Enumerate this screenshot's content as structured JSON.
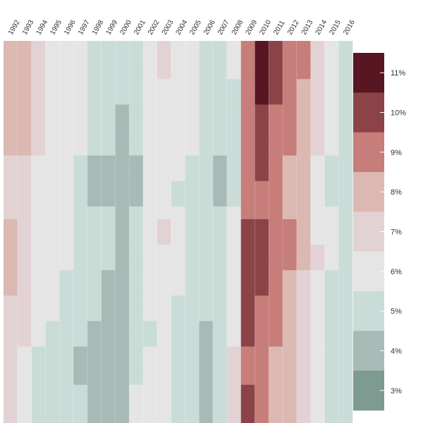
{
  "chart_data": {
    "type": "heatmap",
    "title": "",
    "xlabel": "",
    "ylabel": "",
    "x": [
      "1992",
      "1993",
      "1994",
      "1995",
      "1996",
      "1997",
      "1998",
      "1999",
      "2000",
      "2001",
      "2002",
      "2003",
      "2004",
      "2005",
      "2006",
      "2007",
      "2008",
      "2009",
      "2010",
      "2011",
      "2012",
      "2013",
      "2014",
      "2015",
      "2016"
    ],
    "row_count": 30,
    "values": [
      [
        8,
        8,
        7,
        6,
        6,
        6,
        5,
        5,
        5,
        5,
        6,
        7,
        6,
        6,
        5,
        5,
        6,
        9,
        11,
        10,
        9,
        9,
        7,
        6,
        5
      ],
      [
        8,
        8,
        7,
        6,
        6,
        6,
        5,
        5,
        5,
        5,
        6,
        7,
        6,
        6,
        5,
        5,
        6,
        9,
        11,
        10,
        9,
        9,
        7,
        6,
        5
      ],
      [
        8,
        8,
        7,
        6,
        6,
        6,
        5,
        5,
        5,
        5,
        6,
        7,
        6,
        6,
        5,
        5,
        6,
        9,
        11,
        10,
        9,
        9,
        7,
        6,
        5
      ],
      [
        8,
        8,
        7,
        6,
        6,
        6,
        5,
        5,
        5,
        5,
        6,
        6,
        6,
        6,
        5,
        5,
        5,
        9,
        11,
        10,
        9,
        8,
        7,
        6,
        5
      ],
      [
        8,
        8,
        7,
        6,
        6,
        6,
        5,
        5,
        5,
        5,
        6,
        6,
        6,
        6,
        5,
        5,
        5,
        9,
        11,
        10,
        9,
        8,
        7,
        6,
        5
      ],
      [
        8,
        8,
        7,
        6,
        6,
        6,
        5,
        5,
        4,
        5,
        6,
        6,
        6,
        6,
        5,
        5,
        5,
        9,
        10,
        9,
        9,
        8,
        7,
        6,
        5
      ],
      [
        8,
        8,
        7,
        6,
        6,
        6,
        5,
        5,
        4,
        5,
        6,
        6,
        6,
        6,
        5,
        5,
        5,
        9,
        10,
        9,
        9,
        8,
        7,
        6,
        5
      ],
      [
        8,
        8,
        7,
        6,
        6,
        6,
        5,
        5,
        4,
        5,
        6,
        6,
        6,
        6,
        5,
        5,
        5,
        9,
        10,
        9,
        9,
        8,
        7,
        6,
        5
      ],
      [
        8,
        8,
        7,
        6,
        6,
        6,
        5,
        5,
        4,
        5,
        6,
        6,
        6,
        6,
        5,
        5,
        5,
        9,
        10,
        9,
        9,
        8,
        7,
        6,
        5
      ],
      [
        7,
        7,
        6,
        6,
        6,
        5,
        4,
        4,
        4,
        4,
        6,
        6,
        6,
        5,
        5,
        4,
        5,
        9,
        10,
        9,
        8,
        8,
        6,
        5,
        5
      ],
      [
        7,
        7,
        6,
        6,
        6,
        5,
        4,
        4,
        4,
        4,
        6,
        6,
        6,
        5,
        5,
        4,
        5,
        9,
        10,
        9,
        8,
        8,
        6,
        5,
        5
      ],
      [
        7,
        7,
        6,
        6,
        6,
        5,
        4,
        4,
        4,
        4,
        6,
        6,
        5,
        5,
        5,
        4,
        5,
        9,
        9,
        9,
        8,
        8,
        6,
        5,
        5
      ],
      [
        7,
        7,
        6,
        6,
        6,
        5,
        4,
        4,
        4,
        4,
        6,
        6,
        5,
        5,
        5,
        4,
        5,
        9,
        9,
        9,
        8,
        8,
        6,
        5,
        5
      ],
      [
        7,
        7,
        6,
        6,
        6,
        5,
        5,
        5,
        4,
        5,
        6,
        6,
        6,
        5,
        5,
        5,
        6,
        9,
        9,
        9,
        8,
        8,
        6,
        6,
        5
      ],
      [
        8,
        7,
        6,
        6,
        6,
        5,
        5,
        5,
        4,
        5,
        6,
        7,
        6,
        5,
        5,
        5,
        6,
        10,
        10,
        9,
        9,
        8,
        6,
        6,
        5
      ],
      [
        8,
        7,
        6,
        6,
        6,
        5,
        5,
        5,
        4,
        5,
        6,
        7,
        6,
        5,
        5,
        5,
        6,
        10,
        10,
        9,
        9,
        8,
        6,
        6,
        5
      ],
      [
        8,
        7,
        6,
        6,
        6,
        5,
        5,
        5,
        4,
        5,
        6,
        6,
        6,
        5,
        5,
        5,
        6,
        10,
        10,
        9,
        9,
        8,
        7,
        6,
        5
      ],
      [
        8,
        7,
        6,
        6,
        6,
        5,
        5,
        5,
        4,
        5,
        6,
        6,
        6,
        5,
        5,
        5,
        6,
        10,
        10,
        9,
        9,
        8,
        7,
        6,
        5
      ],
      [
        8,
        7,
        6,
        6,
        5,
        5,
        5,
        4,
        4,
        5,
        6,
        6,
        6,
        5,
        5,
        5,
        6,
        10,
        10,
        9,
        8,
        7,
        6,
        5,
        5
      ],
      [
        8,
        7,
        6,
        6,
        5,
        5,
        5,
        4,
        4,
        5,
        6,
        6,
        6,
        5,
        5,
        5,
        6,
        10,
        10,
        9,
        8,
        7,
        6,
        5,
        5
      ],
      [
        7,
        7,
        6,
        6,
        5,
        5,
        5,
        4,
        4,
        5,
        6,
        6,
        5,
        5,
        5,
        5,
        6,
        10,
        9,
        9,
        8,
        7,
        6,
        5,
        5
      ],
      [
        7,
        7,
        6,
        6,
        5,
        5,
        5,
        4,
        4,
        5,
        6,
        6,
        5,
        5,
        5,
        5,
        6,
        10,
        9,
        9,
        8,
        7,
        6,
        5,
        5
      ],
      [
        7,
        7,
        6,
        5,
        5,
        5,
        4,
        4,
        4,
        5,
        5,
        6,
        5,
        5,
        4,
        5,
        6,
        10,
        9,
        9,
        8,
        7,
        6,
        5,
        5
      ],
      [
        7,
        7,
        6,
        5,
        5,
        5,
        4,
        4,
        4,
        5,
        5,
        6,
        5,
        5,
        4,
        5,
        6,
        10,
        9,
        9,
        8,
        7,
        6,
        5,
        5
      ],
      [
        7,
        6,
        5,
        5,
        5,
        4,
        4,
        4,
        4,
        5,
        6,
        6,
        5,
        5,
        4,
        5,
        7,
        9,
        9,
        8,
        8,
        7,
        6,
        5,
        5
      ],
      [
        7,
        6,
        5,
        5,
        5,
        4,
        4,
        4,
        4,
        5,
        6,
        6,
        5,
        5,
        4,
        5,
        7,
        9,
        9,
        8,
        8,
        7,
        6,
        5,
        5
      ],
      [
        7,
        6,
        5,
        5,
        5,
        4,
        4,
        4,
        4,
        5,
        6,
        6,
        5,
        5,
        4,
        5,
        7,
        9,
        9,
        8,
        8,
        7,
        6,
        5,
        5
      ],
      [
        7,
        6,
        5,
        5,
        5,
        5,
        4,
        4,
        4,
        6,
        6,
        6,
        5,
        5,
        4,
        5,
        7,
        10,
        9,
        8,
        8,
        7,
        6,
        5,
        5
      ],
      [
        7,
        6,
        5,
        5,
        5,
        5,
        4,
        4,
        4,
        6,
        6,
        6,
        5,
        5,
        4,
        5,
        7,
        10,
        9,
        8,
        8,
        7,
        6,
        5,
        5
      ],
      [
        7,
        6,
        5,
        5,
        5,
        5,
        4,
        4,
        4,
        6,
        6,
        6,
        5,
        5,
        4,
        5,
        7,
        10,
        9,
        8,
        8,
        7,
        6,
        5,
        5
      ]
    ],
    "value_unit": "%",
    "colorbar": {
      "levels": [
        3,
        4,
        5,
        6,
        7,
        8,
        9,
        10,
        11
      ],
      "tick_labels": [
        "3%",
        "4%",
        "5%",
        "6%",
        "7%",
        "8%",
        "9%",
        "10%",
        "11%"
      ],
      "colors": [
        "#7d9b91",
        "#a8bab6",
        "#cadcd7",
        "#e5e5e5",
        "#e2d2d4",
        "#dcb8b3",
        "#c77d7a",
        "#8c4347",
        "#581522"
      ]
    },
    "legend_position": "right",
    "grid": false
  }
}
